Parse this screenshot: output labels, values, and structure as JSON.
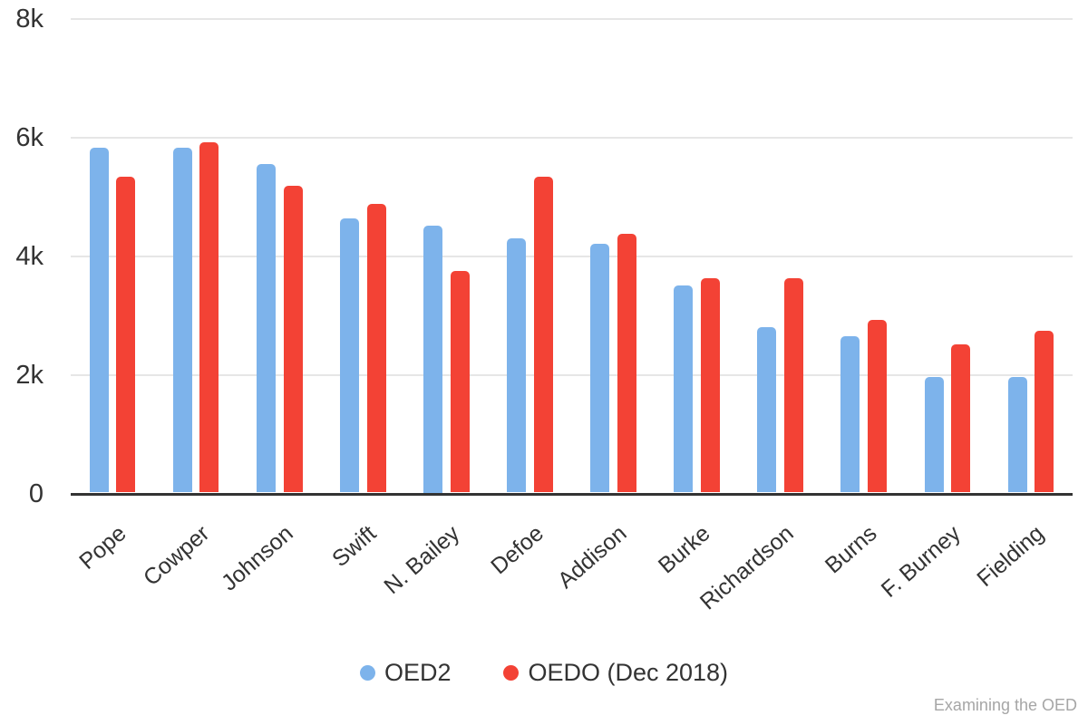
{
  "chart_data": {
    "type": "bar",
    "title": "",
    "xlabel": "",
    "ylabel": "",
    "categories": [
      "Pope",
      "Cowper",
      "Johnson",
      "Swift",
      "N. Bailey",
      "Defoe",
      "Addison",
      "Burke",
      "Richardson",
      "Burns",
      "F. Burney",
      "Fielding"
    ],
    "series": [
      {
        "name": "OED2",
        "color": "#7db3eb",
        "values": [
          5810,
          5810,
          5530,
          4620,
          4500,
          4280,
          4190,
          3490,
          2780,
          2640,
          1940,
          1940
        ]
      },
      {
        "name": "OEDO (Dec 2018)",
        "color": "#f34235",
        "values": [
          5320,
          5900,
          5170,
          4860,
          3730,
          5320,
          4360,
          3610,
          3610,
          2910,
          2490,
          2720
        ]
      }
    ],
    "ylim": [
      0,
      8000
    ],
    "yticks": [
      {
        "value": 0,
        "label": "0"
      },
      {
        "value": 2000,
        "label": "2k"
      },
      {
        "value": 4000,
        "label": "4k"
      },
      {
        "value": 6000,
        "label": "6k"
      },
      {
        "value": 8000,
        "label": "8k"
      }
    ],
    "grid": true,
    "legend_position": "bottom"
  },
  "watermark": "Examining the OED",
  "colors": {
    "axis_line": "#333333",
    "gridline": "#e6e6e6",
    "label_text": "#333333",
    "watermark_text": "#a6a6a6",
    "series_blue": "#7db3eb",
    "series_red": "#f34235"
  }
}
